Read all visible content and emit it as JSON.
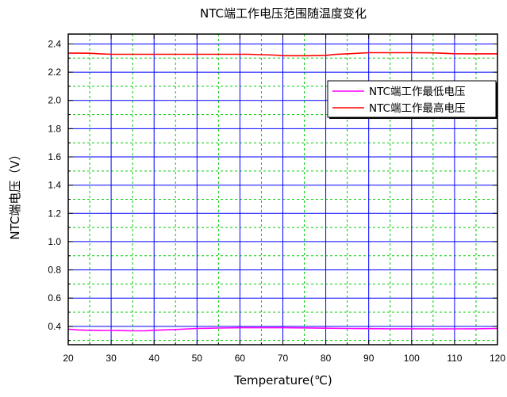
{
  "chart_data": {
    "type": "line",
    "title": "NTC端工作电压范围随温度变化",
    "xlabel": "Temperature(℃)",
    "ylabel": "NTC端电压（V）",
    "xlim": [
      20,
      120
    ],
    "ylim": [
      0.27,
      2.47
    ],
    "x_ticks": [
      20,
      30,
      40,
      50,
      60,
      70,
      80,
      90,
      100,
      110,
      120
    ],
    "x_tick_labels": [
      "20",
      "30",
      "40",
      "50",
      "60",
      "70",
      "80",
      "90",
      "100",
      "110",
      "120"
    ],
    "y_ticks": [
      0.4,
      0.6,
      0.8,
      1.0,
      1.2,
      1.4,
      1.6,
      1.8,
      2.0,
      2.2,
      2.4
    ],
    "y_tick_labels": [
      "0.4",
      "0.6",
      "0.8",
      "1.0",
      "1.2",
      "1.4",
      "1.6",
      "1.8",
      "2.0",
      "2.2",
      "2.4"
    ],
    "grid": {
      "major": true,
      "minor": true,
      "major_color": "#0000ff",
      "minor_color": "#00cc00"
    },
    "legend_position": "top-right",
    "series": [
      {
        "name": "NTC端工作最低电压",
        "color": "#ff00ff",
        "x": [
          20,
          22,
          25,
          28,
          30,
          32,
          35,
          38,
          40,
          45,
          50,
          55,
          60,
          65,
          70,
          75,
          80,
          85,
          90,
          95,
          100,
          105,
          110,
          115,
          120
        ],
        "y": [
          0.38,
          0.375,
          0.372,
          0.371,
          0.371,
          0.37,
          0.368,
          0.369,
          0.372,
          0.378,
          0.385,
          0.388,
          0.39,
          0.39,
          0.39,
          0.389,
          0.387,
          0.385,
          0.384,
          0.383,
          0.383,
          0.382,
          0.382,
          0.383,
          0.385
        ]
      },
      {
        "name": "NTC端工作最高电压",
        "color": "#ff0000",
        "x": [
          20,
          22,
          25,
          28,
          30,
          35,
          40,
          45,
          50,
          55,
          60,
          62,
          65,
          68,
          70,
          73,
          76,
          80,
          82,
          85,
          90,
          95,
          100,
          105,
          110,
          115,
          120
        ],
        "y": [
          2.335,
          2.335,
          2.334,
          2.329,
          2.327,
          2.327,
          2.327,
          2.327,
          2.327,
          2.327,
          2.327,
          2.327,
          2.324,
          2.321,
          2.317,
          2.317,
          2.317,
          2.319,
          2.326,
          2.33,
          2.338,
          2.338,
          2.338,
          2.337,
          2.331,
          2.33,
          2.33
        ]
      }
    ]
  }
}
